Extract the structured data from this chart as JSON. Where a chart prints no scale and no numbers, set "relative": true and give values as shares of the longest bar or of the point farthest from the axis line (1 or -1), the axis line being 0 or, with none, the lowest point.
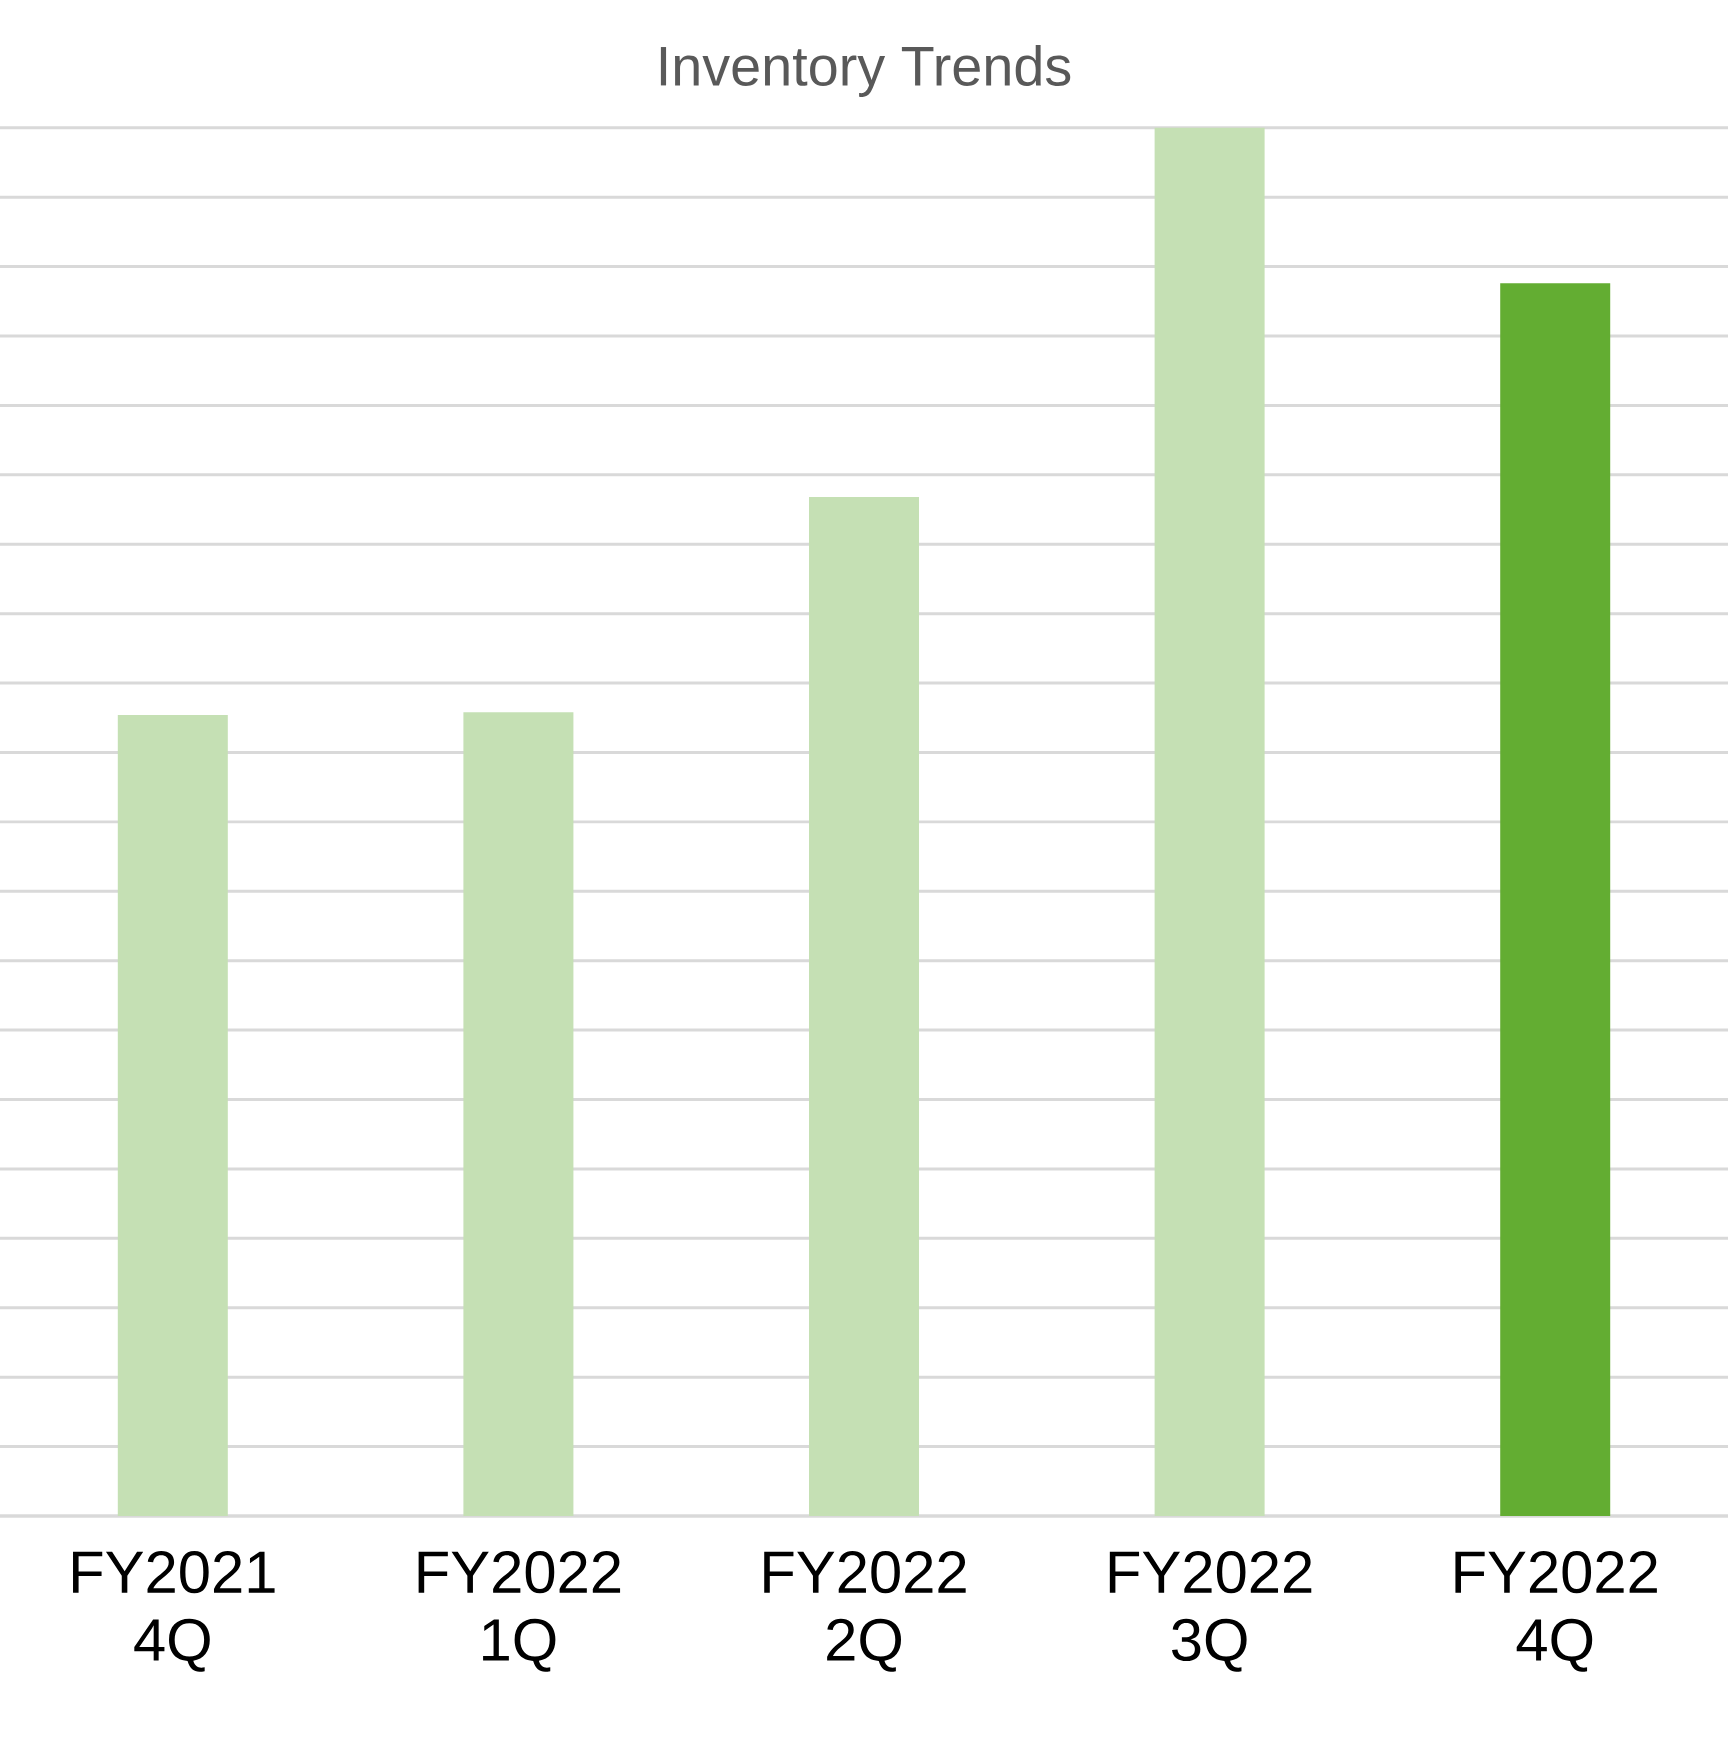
{
  "chart_data": {
    "type": "bar",
    "title": "Inventory Trends",
    "relative": true,
    "grid": "y",
    "categories": [
      "FY2021 4Q",
      "FY2022 1Q",
      "FY2022 2Q",
      "FY2022 3Q",
      "FY2022 4Q"
    ],
    "values": [
      0.577,
      0.579,
      0.734,
      1,
      0.888
    ],
    "colors": [
      "#c5e0b4",
      "#c5e0b4",
      "#c5e0b4",
      "#c5e0b4",
      "#63ad32"
    ]
  }
}
